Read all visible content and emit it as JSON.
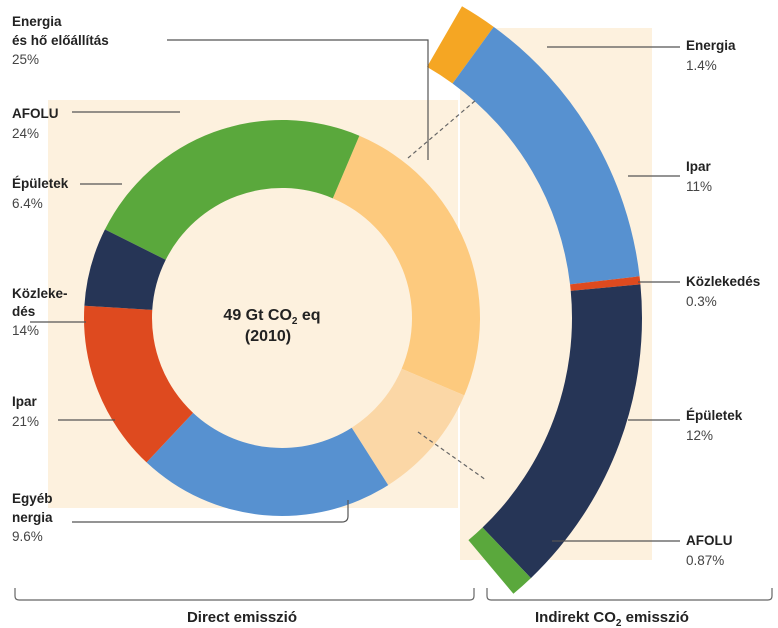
{
  "colors": {
    "panel_bg": "#fdf1de",
    "energy": "#f5a623",
    "afolu": "#5aa83c",
    "buildings": "#263556",
    "transport": "#de4a1f",
    "industry": "#5791d0",
    "other": "#fbd7a6",
    "industry_indirect_source": "#fdca7e"
  },
  "chart_data": [
    {
      "type": "pie",
      "variant": "donut",
      "center_label": {
        "line1": "49 Gt CO",
        "sub": "2",
        "line1_suffix": " eq",
        "line2": "(2010)"
      },
      "group_label": "Direct emisszió",
      "slices": [
        {
          "key": "energy",
          "name_lines": [
            "Energia",
            "és hő előállítás"
          ],
          "value_label": "25%",
          "value": 25,
          "color": "#fdca7e"
        },
        {
          "key": "afolu",
          "name_lines": [
            "AFOLU"
          ],
          "value_label": "24%",
          "value": 24,
          "color": "#5aa83c"
        },
        {
          "key": "buildings",
          "name_lines": [
            "Épületek"
          ],
          "value_label": "6.4%",
          "value": 6.4,
          "color": "#263556"
        },
        {
          "key": "transport",
          "name_lines": [
            "Közleke-",
            "dés"
          ],
          "value_label": "14%",
          "value": 14,
          "color": "#de4a1f"
        },
        {
          "key": "industry",
          "name_lines": [
            "Ipar"
          ],
          "value_label": "21%",
          "value": 21,
          "color": "#5791d0"
        },
        {
          "key": "other",
          "name_lines": [
            "Egyéb",
            "nergia"
          ],
          "value_label": "9.6%",
          "value": 9.6,
          "color": "#fbd7a6"
        }
      ]
    },
    {
      "type": "pie",
      "variant": "arc-breakdown",
      "group_label": {
        "prefix": "Indirekt CO",
        "sub": "2",
        "suffix": " emisszió"
      },
      "slices": [
        {
          "key": "energy",
          "name": "Energia",
          "value_label": "1.4%",
          "value": 1.4,
          "color": "#f5a623"
        },
        {
          "key": "industry",
          "name": "Ipar",
          "value_label": "11%",
          "value": 11,
          "color": "#5791d0"
        },
        {
          "key": "transport",
          "name": "Közlekedés",
          "value_label": "0.3%",
          "value": 0.3,
          "color": "#de4a1f"
        },
        {
          "key": "buildings",
          "name": "Épületek",
          "value_label": "12%",
          "value": 12,
          "color": "#263556"
        },
        {
          "key": "afolu",
          "name": "AFOLU",
          "value_label": "0.87%",
          "value": 0.87,
          "color": "#5aa83c"
        }
      ]
    }
  ]
}
